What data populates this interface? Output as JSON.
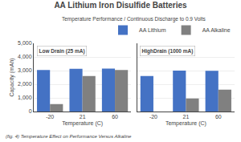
{
  "chart_data": [
    {
      "type": "bar",
      "title": "AA Lithium Iron Disulfide Batteries",
      "subtitle": "Temperature Performance / Continuous Discharge to 0.9 Volts",
      "caption": "(fig. 4) Temperature Effect on Performance Versus Alkaline",
      "annotation": "Low Drain (25 mA)",
      "xlabel": "Temperature (C)",
      "ylabel": "Capacity (mAh)",
      "categories": [
        "-20",
        "21",
        "60"
      ],
      "series": [
        {
          "name": "AA Lithium",
          "color": "#4472C4",
          "values": [
            3050,
            3130,
            3150
          ]
        },
        {
          "name": "AA Alkaline",
          "color": "#808080",
          "values": [
            550,
            2600,
            3050
          ]
        }
      ],
      "ylim": [
        0,
        5000
      ],
      "yticks": [
        0,
        {
          "value": 1000,
          "label": "1,000"
        },
        {
          "value": 2000,
          "label": "2,000"
        },
        {
          "value": 3000,
          "label": "3,000"
        },
        {
          "value": 4000,
          "label": "4,000"
        },
        {
          "value": 5000,
          "label": "5,000"
        }
      ],
      "grid": true
    },
    {
      "type": "bar",
      "annotation": "HighDrain (1000 mA)",
      "xlabel": "Temperature (C)",
      "categories": [
        "-20",
        "21",
        "60"
      ],
      "series": [
        {
          "name": "AA Lithium",
          "color": "#4472C4",
          "values": [
            2600,
            3000,
            2980
          ]
        },
        {
          "name": "AA Alkaline",
          "color": "#808080",
          "values": [
            0,
            950,
            1600
          ]
        }
      ],
      "ylim": [
        0,
        5000
      ],
      "yticks": [
        0,
        {
          "value": 1000,
          "label": "1,000"
        },
        {
          "value": 2000,
          "label": "2,000"
        },
        {
          "value": 3000,
          "label": "3,000"
        },
        {
          "value": 4000,
          "label": "4,000"
        },
        {
          "value": 5000,
          "label": "5,000"
        }
      ],
      "grid": true,
      "legend": "upper right",
      "tick_labels": "x"
    }
  ]
}
